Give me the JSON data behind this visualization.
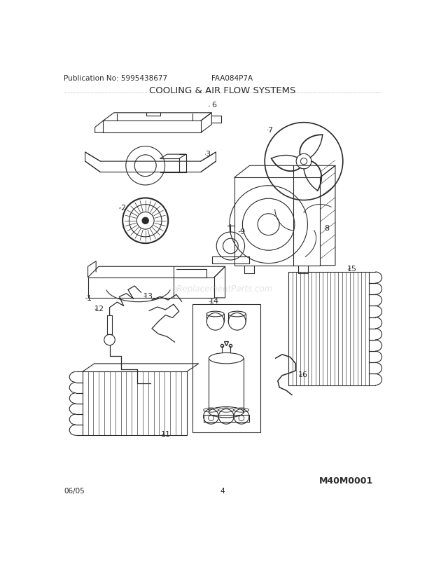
{
  "title": "COOLING & AIR FLOW SYSTEMS",
  "pub_no": "Publication No: 5995438677",
  "model": "FAA084P7A",
  "date": "06/05",
  "page": "4",
  "watermark": "eReplacementParts.com",
  "diagram_id": "M40M0001",
  "bg_color": "#ffffff",
  "line_color": "#2a2a2a",
  "title_fontsize": 9.5,
  "label_fontsize": 8,
  "footer_fontsize": 7.5
}
